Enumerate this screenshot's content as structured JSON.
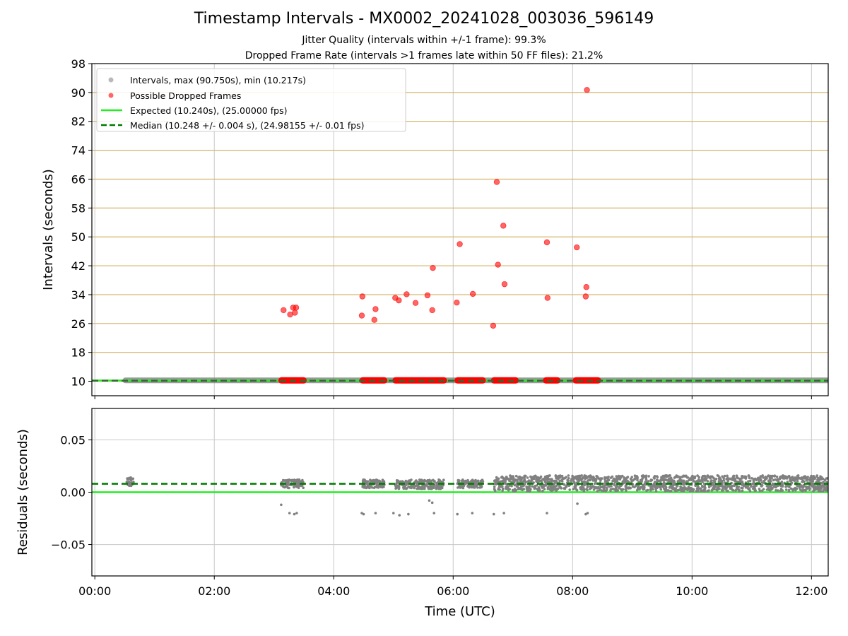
{
  "title": "Timestamp Intervals - MX0002_20241028_003036_596149",
  "subtitle_1": "Jitter Quality (intervals within +/-1 frame): 99.3%",
  "subtitle_2": "Dropped Frame Rate (intervals >1 frames late within 50 FF files): 21.2%",
  "colors": {
    "intervals": "#808080",
    "dropped": "#ff0000",
    "expected": "#22ee22",
    "median": "#007a00",
    "tick_grid": "#c8c8c8",
    "y_band_lines": "#d4b46a"
  },
  "chart_data": [
    {
      "type": "scatter",
      "panel": "intervals",
      "xlabel": "",
      "ylabel": "Intervals (seconds)",
      "x_unit": "hours UTC",
      "xlim": [
        -0.05,
        12.28
      ],
      "ylim": [
        6,
        98
      ],
      "x_ticks": [
        0,
        2,
        4,
        6,
        8,
        10,
        12
      ],
      "y_ticks": [
        10,
        18,
        26,
        34,
        42,
        50,
        58,
        66,
        74,
        82,
        90,
        98
      ],
      "y_tick_labels": [
        "10",
        "18",
        "26",
        "34",
        "42",
        "50",
        "58",
        "66",
        "74",
        "82",
        "90",
        "98"
      ],
      "grid": true,
      "legend_position": "top-left",
      "legend": [
        {
          "label": "Intervals, max (90.750s), min (10.217s)",
          "kind": "gray-dot"
        },
        {
          "label": "Possible Dropped Frames",
          "kind": "red-dot"
        },
        {
          "label": "Expected (10.240s), (25.00000 fps)",
          "kind": "solid-line"
        },
        {
          "label": "Median (10.248 +/- 0.004 s), (24.98155 +/- 0.01 fps)",
          "kind": "dashed-line"
        }
      ],
      "expected_value": 10.24,
      "median_value": 10.248,
      "intervals_band": {
        "x_range": [
          0.5,
          12.28
        ],
        "y": 10.25
      },
      "dropped_frame_bands": [
        {
          "x_range": [
            3.12,
            3.5
          ],
          "y": 10.25
        },
        {
          "x_range": [
            4.48,
            4.85
          ],
          "y": 10.25
        },
        {
          "x_range": [
            5.03,
            5.85
          ],
          "y": 10.25
        },
        {
          "x_range": [
            6.07,
            6.5
          ],
          "y": 10.25
        },
        {
          "x_range": [
            6.68,
            7.05
          ],
          "y": 10.25
        },
        {
          "x_range": [
            7.55,
            7.75
          ],
          "y": 10.25
        },
        {
          "x_range": [
            8.05,
            8.43
          ],
          "y": 10.25
        }
      ],
      "dropped_frames": [
        {
          "x": 3.16,
          "y": 29.7
        },
        {
          "x": 3.27,
          "y": 28.5
        },
        {
          "x": 3.32,
          "y": 30.4
        },
        {
          "x": 3.35,
          "y": 29.0
        },
        {
          "x": 3.37,
          "y": 30.4
        },
        {
          "x": 4.48,
          "y": 33.5
        },
        {
          "x": 4.47,
          "y": 28.2
        },
        {
          "x": 4.68,
          "y": 27.0
        },
        {
          "x": 4.7,
          "y": 30.0
        },
        {
          "x": 5.03,
          "y": 33.1
        },
        {
          "x": 5.09,
          "y": 32.4
        },
        {
          "x": 5.22,
          "y": 34.1
        },
        {
          "x": 5.37,
          "y": 31.7
        },
        {
          "x": 5.57,
          "y": 33.8
        },
        {
          "x": 5.65,
          "y": 29.7
        },
        {
          "x": 5.66,
          "y": 41.4
        },
        {
          "x": 6.06,
          "y": 31.8
        },
        {
          "x": 6.11,
          "y": 48.0
        },
        {
          "x": 6.33,
          "y": 34.2
        },
        {
          "x": 6.67,
          "y": 25.4
        },
        {
          "x": 6.73,
          "y": 65.2
        },
        {
          "x": 6.75,
          "y": 42.3
        },
        {
          "x": 6.84,
          "y": 53.1
        },
        {
          "x": 6.86,
          "y": 36.9
        },
        {
          "x": 7.57,
          "y": 48.5
        },
        {
          "x": 7.58,
          "y": 33.1
        },
        {
          "x": 8.07,
          "y": 47.1
        },
        {
          "x": 8.22,
          "y": 33.5
        },
        {
          "x": 8.23,
          "y": 36.1
        },
        {
          "x": 8.24,
          "y": 90.7
        }
      ]
    },
    {
      "type": "scatter",
      "panel": "residuals",
      "xlabel": "Time (UTC)",
      "ylabel": "Residuals (seconds)",
      "x_unit": "hours UTC",
      "xlim": [
        -0.05,
        12.28
      ],
      "ylim": [
        -0.08,
        0.08
      ],
      "x_ticks": [
        0,
        2,
        4,
        6,
        8,
        10,
        12
      ],
      "x_tick_labels": [
        "00:00",
        "02:00",
        "04:00",
        "06:00",
        "08:00",
        "10:00",
        "12:00"
      ],
      "y_ticks": [
        -0.05,
        0.0,
        0.05
      ],
      "y_tick_labels": [
        "−0.05",
        "0.00",
        "0.05"
      ],
      "grid": true,
      "expected_value": 0.0,
      "median_value": 0.008,
      "residual_clusters": [
        {
          "x_range": [
            0.52,
            0.65
          ],
          "y_range": [
            0.006,
            0.014
          ]
        },
        {
          "x_range": [
            3.12,
            3.5
          ],
          "y_range": [
            0.004,
            0.012
          ]
        },
        {
          "x_range": [
            4.48,
            4.85
          ],
          "y_range": [
            0.004,
            0.012
          ]
        },
        {
          "x_range": [
            5.03,
            5.85
          ],
          "y_range": [
            0.003,
            0.012
          ]
        },
        {
          "x_range": [
            6.07,
            6.5
          ],
          "y_range": [
            0.004,
            0.012
          ]
        },
        {
          "x_range": [
            6.68,
            12.28
          ],
          "y_range": [
            0.001,
            0.016
          ]
        }
      ],
      "residual_outliers": [
        {
          "x": 3.12,
          "y": -0.012
        },
        {
          "x": 3.26,
          "y": -0.02
        },
        {
          "x": 3.34,
          "y": -0.021
        },
        {
          "x": 3.38,
          "y": -0.02
        },
        {
          "x": 4.47,
          "y": -0.02
        },
        {
          "x": 4.5,
          "y": -0.021
        },
        {
          "x": 4.7,
          "y": -0.02
        },
        {
          "x": 5.0,
          "y": -0.02
        },
        {
          "x": 5.1,
          "y": -0.022
        },
        {
          "x": 5.25,
          "y": -0.021
        },
        {
          "x": 5.6,
          "y": -0.008
        },
        {
          "x": 5.68,
          "y": -0.02
        },
        {
          "x": 5.65,
          "y": -0.01
        },
        {
          "x": 6.07,
          "y": -0.021
        },
        {
          "x": 6.32,
          "y": -0.02
        },
        {
          "x": 6.68,
          "y": -0.021
        },
        {
          "x": 6.85,
          "y": -0.02
        },
        {
          "x": 7.57,
          "y": -0.02
        },
        {
          "x": 8.08,
          "y": -0.011
        },
        {
          "x": 8.22,
          "y": -0.021
        },
        {
          "x": 8.25,
          "y": -0.02
        }
      ]
    }
  ]
}
